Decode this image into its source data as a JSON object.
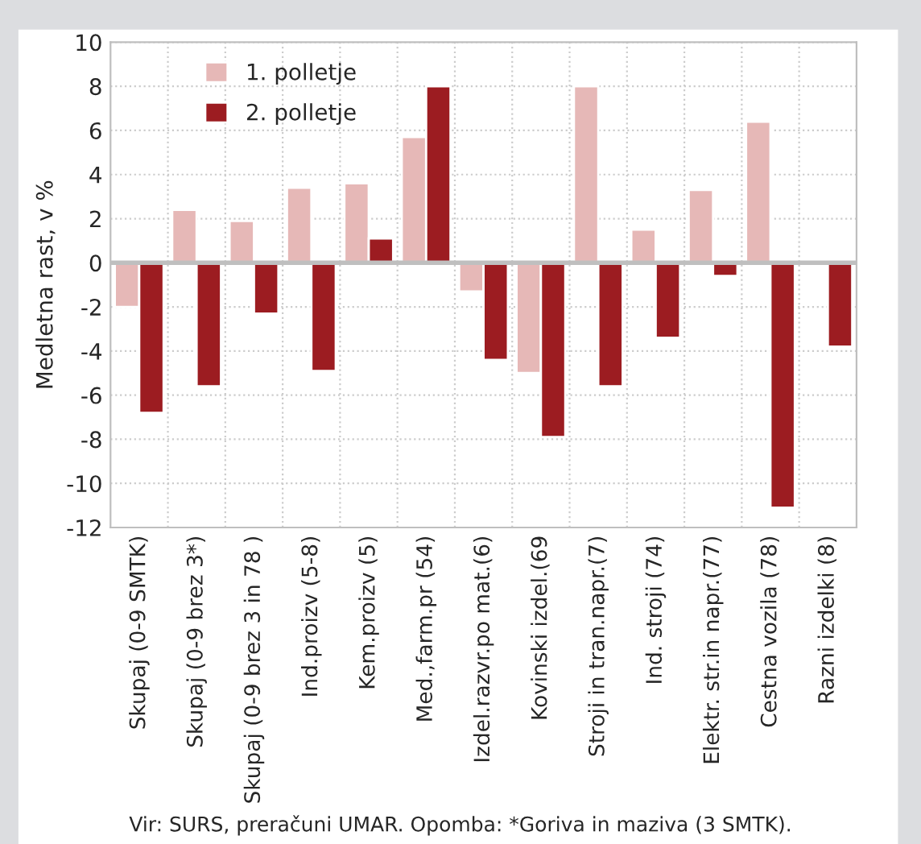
{
  "chart_data": {
    "type": "bar",
    "categories": [
      "Skupaj (0-9 SMTK)",
      "Skupaj (0-9 brez 3*)",
      "Skupaj (0-9 brez 3 in 78 )",
      "Ind.proizv (5-8)",
      "Kem.proizv (5)",
      "Med.,farm.pr (54)",
      "Izdel.razvr.po mat.(6)",
      "Kovinski izdel.(69",
      "Stroji in tran.napr.(7)",
      "Ind. stroji (74)",
      "Elektr. str.in napr.(77)",
      "Cestna vozila (78)",
      "Razni izdelki (8)"
    ],
    "series": [
      {
        "name": "1. polletje",
        "color": "#e6b8b7",
        "values": [
          -2.0,
          2.4,
          1.9,
          3.4,
          3.6,
          5.7,
          -1.3,
          -5.0,
          8.0,
          1.5,
          3.3,
          6.4,
          -0.1
        ]
      },
      {
        "name": "2. polletje",
        "color": "#9c1c21",
        "values": [
          -6.8,
          -5.6,
          -2.3,
          -4.9,
          1.1,
          8.0,
          -4.4,
          -7.9,
          -5.6,
          -3.4,
          -0.6,
          -11.1,
          -3.8
        ]
      }
    ],
    "ylabel": "Medletna rast, v %",
    "ylim": [
      -12,
      10
    ],
    "yticks": [
      -12,
      -10,
      -8,
      -6,
      -4,
      -2,
      0,
      2,
      4,
      6,
      8,
      10
    ],
    "grid": true,
    "legend": "top left",
    "annotations": [
      "Vir: SURS, preračuni UMAR. Opomba: *Goriva in maziva (3 SMTK)."
    ]
  }
}
